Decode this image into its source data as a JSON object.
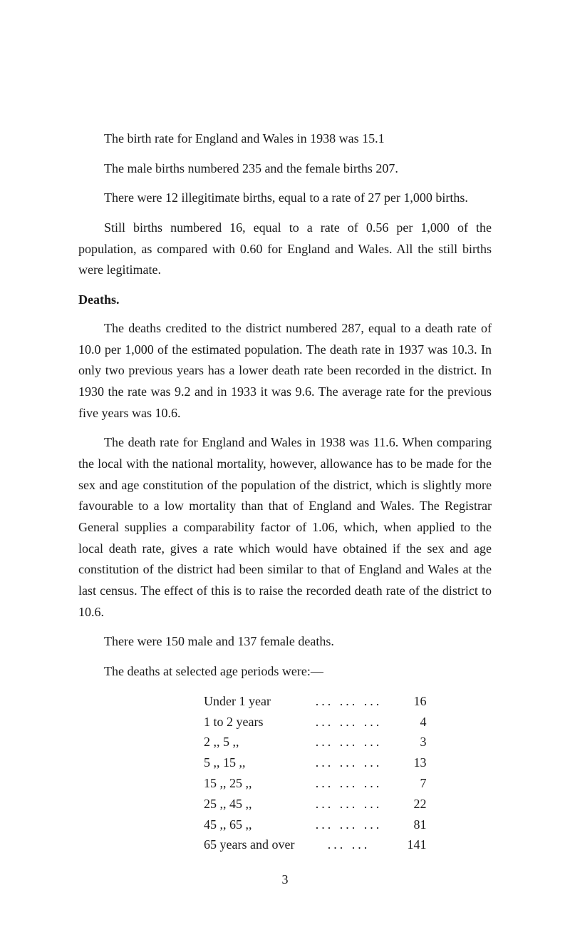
{
  "paragraphs": {
    "p1": "The birth rate for England and Wales in 1938 was 15.1",
    "p2": "The male births numbered 235 and the female births 207.",
    "p3": "There were 12 illegitimate births, equal to a rate of 27 per 1,000 births.",
    "p4": "Still births numbered 16, equal to a rate of 0.56 per 1,000 of the population, as compared with 0.60 for England and Wales. All the still births were legitimate.",
    "heading1": "Deaths.",
    "p5": "The deaths credited to the district numbered 287, equal to a death rate of 10.0 per 1,000 of the estimated population. The death rate in 1937 was 10.3. In only two previous years has a lower death rate been recorded in the district. In 1930 the rate was 9.2 and in 1933 it was 9.6. The average rate for the previous five years was 10.6.",
    "p6": "The death rate for England and Wales in 1938 was 11.6. When comparing the local with the national mortality, however, allowance has to be made for the sex and age constitution of the population of the district, which is slightly more favourable to a low mortality than that of England and Wales. The Registrar General supplies a comparability factor of 1.06, which, when applied to the local death rate, gives a rate which would have obtained if the sex and age constitution of the district had been similar to that of England and Wales at the last census. The effect of this is to raise the recorded death rate of the district to 10.6.",
    "p7": "There were 150 male and 137 female deaths.",
    "p8": "The deaths at selected age periods were:—"
  },
  "stats": {
    "rows": [
      {
        "label": "Under 1 year",
        "value": "16"
      },
      {
        "label": "1 to 2 years",
        "value": "4"
      },
      {
        "label": "2 ,, 5   ,,",
        "value": "3"
      },
      {
        "label": "5 ,, 15  ,,",
        "value": "13"
      },
      {
        "label": "15 ,, 25  ,,",
        "value": "7"
      },
      {
        "label": "25 ,, 45  ,,",
        "value": "22"
      },
      {
        "label": "45 ,, 65  ,,",
        "value": "81"
      },
      {
        "label": "65 years and over",
        "value": "141"
      }
    ],
    "dots": "...   ...   ..."
  },
  "page_number": "3"
}
